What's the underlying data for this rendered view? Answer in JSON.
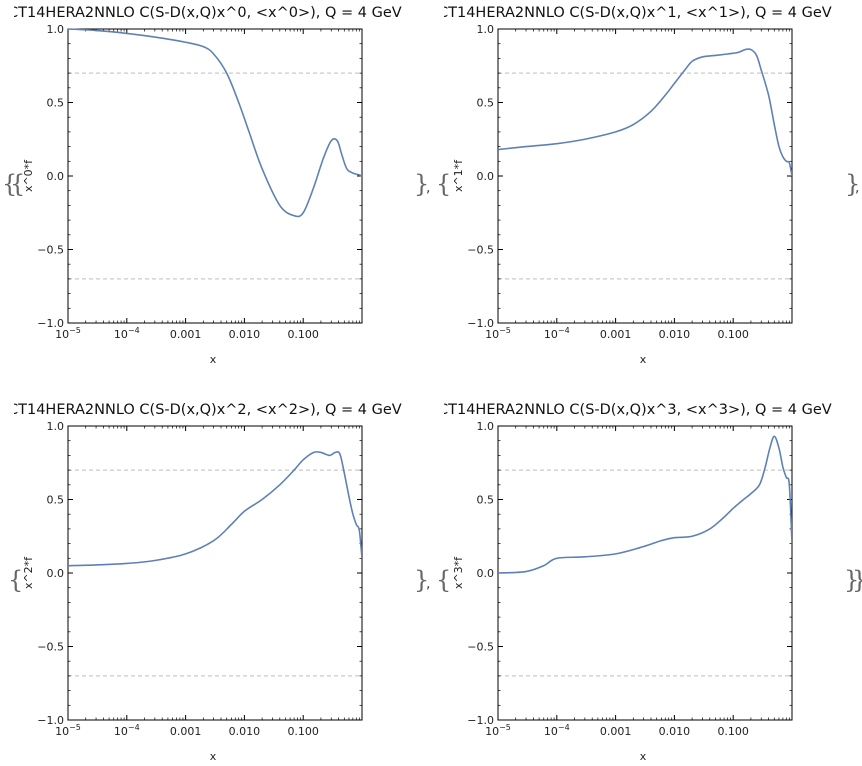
{
  "wrapper": {
    "open_outer": "{",
    "open_inner": "{",
    "close_inner": "}",
    "close_outer": "}",
    "separator": ","
  },
  "colors": {
    "series": "#5e81b5",
    "gridline": "#bdbdbd",
    "axis": "#000000"
  },
  "chart_data": [
    {
      "type": "line",
      "title": "CT14HERA2NNLO C(S-D(x,Q)x^0, <x^0>), Q = 4 GeV",
      "xlabel": "x",
      "ylabel": "x^0*f",
      "xscale": "log",
      "xlim": [
        1e-05,
        1
      ],
      "ylim": [
        -1.0,
        1.0
      ],
      "xticks": [
        "10^-5",
        "10^-4",
        "0.001",
        "0.010",
        "0.100"
      ],
      "yticks": [
        "1.0",
        "0.5",
        "0.0",
        "-0.5",
        "-1.0"
      ],
      "reference_lines": [
        0.7,
        -0.7
      ],
      "series": [
        {
          "x": [
            1e-05,
            3e-05,
            0.0001,
            0.0003,
            0.001,
            0.002,
            0.003,
            0.005,
            0.008,
            0.012,
            0.02,
            0.04,
            0.07,
            0.1,
            0.15,
            0.22,
            0.3,
            0.38,
            0.45,
            0.55,
            0.7,
            0.85,
            1.0
          ],
          "y": [
            1.0,
            0.99,
            0.97,
            0.945,
            0.91,
            0.88,
            0.83,
            0.7,
            0.5,
            0.3,
            0.05,
            -0.2,
            -0.27,
            -0.25,
            -0.08,
            0.12,
            0.24,
            0.24,
            0.15,
            0.05,
            0.02,
            0.01,
            0.0
          ]
        }
      ]
    },
    {
      "type": "line",
      "title": "CT14HERA2NNLO C(S-D(x,Q)x^1, <x^1>), Q = 4 GeV",
      "xlabel": "x",
      "ylabel": "x^1*f",
      "xscale": "log",
      "xlim": [
        1e-05,
        1
      ],
      "ylim": [
        -1.0,
        1.0
      ],
      "xticks": [
        "10^-5",
        "10^-4",
        "0.001",
        "0.010",
        "0.100"
      ],
      "yticks": [
        "1.0",
        "0.5",
        "0.0",
        "-0.5",
        "-1.0"
      ],
      "reference_lines": [
        0.7,
        -0.7
      ],
      "series": [
        {
          "x": [
            1e-05,
            3e-05,
            0.0001,
            0.0003,
            0.001,
            0.002,
            0.004,
            0.007,
            0.01,
            0.015,
            0.02,
            0.03,
            0.05,
            0.08,
            0.12,
            0.16,
            0.2,
            0.25,
            0.3,
            0.4,
            0.5,
            0.6,
            0.7,
            0.8,
            0.9,
            1.0
          ],
          "y": [
            0.18,
            0.2,
            0.22,
            0.25,
            0.3,
            0.35,
            0.44,
            0.55,
            0.63,
            0.72,
            0.78,
            0.81,
            0.82,
            0.83,
            0.84,
            0.86,
            0.86,
            0.82,
            0.72,
            0.55,
            0.35,
            0.2,
            0.13,
            0.1,
            0.09,
            0.0
          ]
        }
      ]
    },
    {
      "type": "line",
      "title": "CT14HERA2NNLO C(S-D(x,Q)x^2, <x^2>), Q = 4 GeV",
      "xlabel": "x",
      "ylabel": "x^2*f",
      "xscale": "log",
      "xlim": [
        1e-05,
        1
      ],
      "ylim": [
        -1.0,
        1.0
      ],
      "xticks": [
        "10^-5",
        "10^-4",
        "0.001",
        "0.010",
        "0.100"
      ],
      "yticks": [
        "1.0",
        "0.5",
        "0.0",
        "-0.5",
        "-1.0"
      ],
      "reference_lines": [
        0.7,
        -0.7
      ],
      "series": [
        {
          "x": [
            1e-05,
            3e-05,
            0.0001,
            0.0003,
            0.001,
            0.003,
            0.006,
            0.01,
            0.02,
            0.04,
            0.07,
            0.1,
            0.15,
            0.2,
            0.28,
            0.35,
            0.42,
            0.5,
            0.6,
            0.7,
            0.8,
            0.9,
            1.0
          ],
          "y": [
            0.05,
            0.055,
            0.065,
            0.085,
            0.13,
            0.22,
            0.33,
            0.42,
            0.5,
            0.6,
            0.7,
            0.77,
            0.82,
            0.82,
            0.8,
            0.82,
            0.81,
            0.68,
            0.52,
            0.4,
            0.33,
            0.29,
            0.1
          ]
        }
      ]
    },
    {
      "type": "line",
      "title": "CT14HERA2NNLO C(S-D(x,Q)x^3, <x^3>), Q = 4 GeV",
      "xlabel": "x",
      "ylabel": "x^3*f",
      "xscale": "log",
      "xlim": [
        1e-05,
        1
      ],
      "ylim": [
        -1.0,
        1.0
      ],
      "xticks": [
        "10^-5",
        "10^-4",
        "0.001",
        "0.010",
        "0.100"
      ],
      "yticks": [
        "1.0",
        "0.5",
        "0.0",
        "-0.5",
        "-1.0"
      ],
      "reference_lines": [
        0.7,
        -0.7
      ],
      "series": [
        {
          "x": [
            1e-05,
            3e-05,
            6e-05,
            0.0001,
            0.0003,
            0.001,
            0.003,
            0.006,
            0.01,
            0.02,
            0.04,
            0.07,
            0.1,
            0.15,
            0.2,
            0.28,
            0.35,
            0.42,
            0.5,
            0.6,
            0.7,
            0.8,
            0.9,
            1.0
          ],
          "y": [
            0.0,
            0.01,
            0.05,
            0.1,
            0.11,
            0.13,
            0.18,
            0.22,
            0.24,
            0.25,
            0.3,
            0.38,
            0.44,
            0.5,
            0.54,
            0.6,
            0.72,
            0.85,
            0.93,
            0.85,
            0.72,
            0.65,
            0.6,
            0.2
          ]
        }
      ]
    }
  ]
}
